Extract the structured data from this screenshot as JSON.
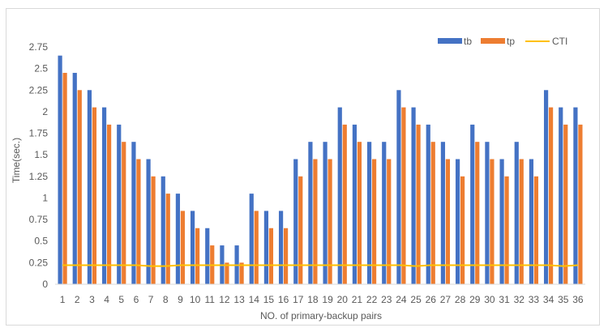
{
  "chart_data": {
    "type": "bar",
    "title": "",
    "xlabel": "NO. of primary-backup pairs",
    "ylabel": "Time(sec.)",
    "ylim": [
      0,
      2.75
    ],
    "yticks": [
      "0",
      "0.25",
      "0.5",
      "0.75",
      "1",
      "1.25",
      "1.5",
      "1.75",
      "2",
      "2.25",
      "2.5",
      "2.75"
    ],
    "categories": [
      "1",
      "2",
      "3",
      "4",
      "5",
      "6",
      "7",
      "8",
      "9",
      "10",
      "11",
      "12",
      "13",
      "14",
      "15",
      "16",
      "17",
      "18",
      "19",
      "20",
      "21",
      "22",
      "23",
      "24",
      "25",
      "26",
      "27",
      "28",
      "29",
      "30",
      "31",
      "32",
      "33",
      "34",
      "35",
      "36"
    ],
    "series": [
      {
        "name": "tb",
        "type": "bar",
        "color": "#4472c4",
        "values": [
          2.65,
          2.45,
          2.25,
          2.05,
          1.85,
          1.65,
          1.45,
          1.25,
          1.05,
          0.85,
          0.65,
          0.45,
          0.45,
          1.05,
          0.85,
          0.85,
          1.45,
          1.65,
          1.65,
          2.05,
          1.85,
          1.65,
          1.65,
          2.25,
          2.05,
          1.85,
          1.65,
          1.45,
          1.85,
          1.65,
          1.45,
          1.65,
          1.45,
          2.25,
          2.05,
          2.05
        ]
      },
      {
        "name": "tp",
        "type": "bar",
        "color": "#ed7d31",
        "values": [
          2.45,
          2.25,
          2.05,
          1.85,
          1.65,
          1.45,
          1.25,
          1.05,
          0.85,
          0.65,
          0.45,
          0.25,
          0.25,
          0.85,
          0.65,
          0.65,
          1.25,
          1.45,
          1.45,
          1.85,
          1.65,
          1.45,
          1.45,
          2.05,
          1.85,
          1.65,
          1.45,
          1.25,
          1.65,
          1.45,
          1.25,
          1.45,
          1.25,
          2.05,
          1.85,
          1.85
        ]
      },
      {
        "name": "CTI",
        "type": "line",
        "color": "#ffc000",
        "values": [
          0.22,
          0.22,
          0.22,
          0.22,
          0.22,
          0.22,
          0.21,
          0.21,
          0.22,
          0.22,
          0.22,
          0.22,
          0.22,
          0.22,
          0.22,
          0.22,
          0.22,
          0.22,
          0.22,
          0.22,
          0.22,
          0.22,
          0.22,
          0.22,
          0.21,
          0.22,
          0.22,
          0.22,
          0.22,
          0.22,
          0.22,
          0.22,
          0.22,
          0.22,
          0.21,
          0.22
        ]
      }
    ],
    "grid": false,
    "legend_position": "top-right"
  }
}
